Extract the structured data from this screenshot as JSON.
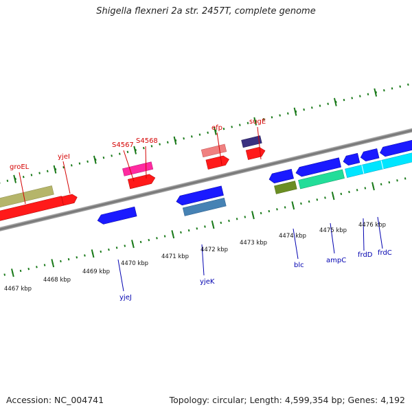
{
  "title": "Shigella flexneri 2a str. 2457T, complete genome",
  "footer": {
    "accession": "Accession: NC_004741",
    "topology": "Topology: circular; Length: 4,599,354 bp; Genes: 4,192"
  },
  "scale_labels": [
    "4467 kbp",
    "4468 kbp",
    "4469 kbp",
    "4470 kbp",
    "4471 kbp",
    "4472 kbp",
    "4473 kbp",
    "4474 kbp",
    "4475 kbp",
    "4476 kbp"
  ],
  "genes_top": [
    "groEL",
    "yjeI",
    "S4567",
    "S4568",
    "efp",
    "sugE"
  ],
  "genes_bottom": [
    "yjeJ",
    "yjeK",
    "blc",
    "ampC",
    "frdD",
    "frdC"
  ],
  "colors": {
    "forward_label": "#d40000",
    "reverse_label": "#0000b0",
    "tick": "#1a7a1a",
    "backbone": "#808080"
  }
}
